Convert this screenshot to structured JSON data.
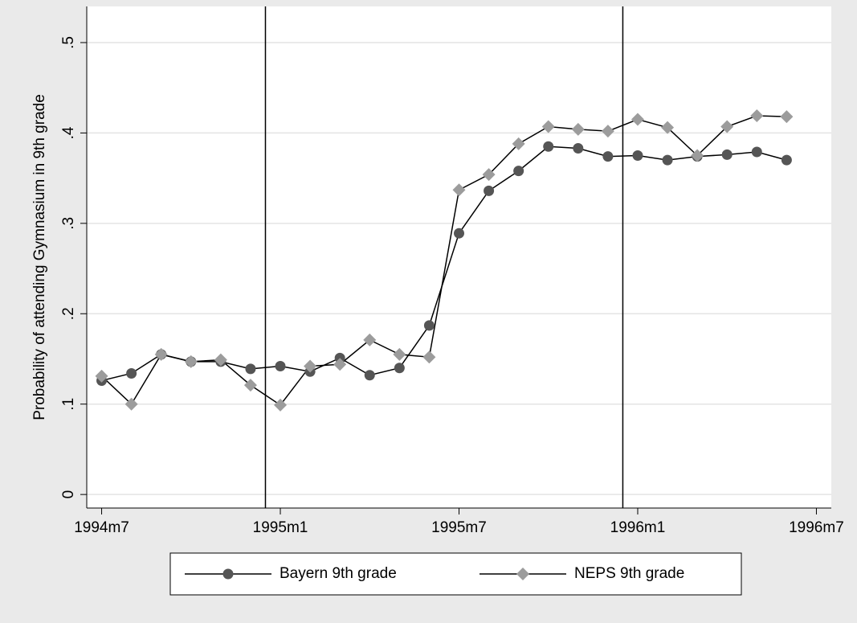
{
  "chart_data": {
    "type": "line",
    "ylabel": "Probability of attending Gymnasium in 9th grade",
    "x": [
      414,
      415,
      416,
      417,
      418,
      419,
      420,
      421,
      422,
      423,
      424,
      425,
      426,
      427,
      428,
      429,
      430,
      431,
      432,
      433,
      434,
      435,
      436,
      437
    ],
    "xlim": [
      413.5,
      438.5
    ],
    "xticks": [
      {
        "value": 414,
        "label": "1994m7"
      },
      {
        "value": 420,
        "label": "1995m1"
      },
      {
        "value": 426,
        "label": "1995m7"
      },
      {
        "value": 432,
        "label": "1996m1"
      },
      {
        "value": 438,
        "label": "1996m7"
      }
    ],
    "xlines": [
      419.5,
      431.5
    ],
    "ylim": [
      -0.015,
      0.54
    ],
    "yticks": [
      0,
      {
        "value": 0.1,
        "label": ".1"
      },
      {
        "value": 0.2,
        "label": ".2"
      },
      {
        "value": 0.3,
        "label": ".3"
      },
      {
        "value": 0.4,
        "label": ".4"
      },
      {
        "value": 0.5,
        "label": ".5"
      }
    ],
    "grid": true,
    "series": [
      {
        "name": "Bayern 9th grade",
        "color": "#555555",
        "marker": "circle",
        "values": [
          0.126,
          0.134,
          0.155,
          0.147,
          0.147,
          0.139,
          0.142,
          0.136,
          0.151,
          0.132,
          0.14,
          0.187,
          0.289,
          0.336,
          0.358,
          0.385,
          0.383,
          0.374,
          0.375,
          0.37,
          0.374,
          0.376,
          0.379,
          0.37
        ]
      },
      {
        "name": "NEPS 9th grade",
        "color": "#9c9c9c",
        "marker": "diamond",
        "values": [
          0.131,
          0.1,
          0.155,
          0.147,
          0.149,
          0.121,
          0.099,
          0.142,
          0.144,
          0.171,
          0.155,
          0.152,
          0.337,
          0.354,
          0.388,
          0.407,
          0.404,
          0.402,
          0.415,
          0.406,
          0.375,
          0.407,
          0.419,
          0.418
        ]
      }
    ]
  }
}
